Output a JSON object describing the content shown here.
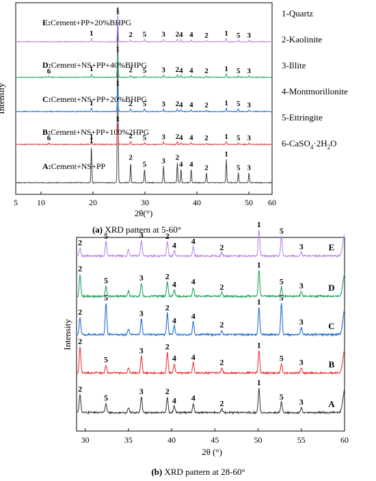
{
  "colors": {
    "A": "#3f3f3f",
    "B": "#e8383b",
    "C": "#1f6fd6",
    "D": "#1fa35c",
    "E": "#b985e6",
    "frame": "#000000"
  },
  "legend": [
    {
      "text": "1-Quartz"
    },
    {
      "text": "2-Kaolinite"
    },
    {
      "text": "3-Illite"
    },
    {
      "text": "4-Montmorillonite"
    },
    {
      "text": "5-Ettringite"
    },
    {
      "main": "6-CaSO",
      "sub1": "4",
      "mid": "·2H",
      "sub2": "2",
      "tail": "O"
    }
  ],
  "chart_data": [
    {
      "type": "line",
      "title": "",
      "caption": {
        "bold": "(a)",
        "rest": " XRD pattern at 5-60°"
      },
      "xlabel": "2θ(°)",
      "ylabel": "Intensity",
      "xlim": [
        5,
        60
      ],
      "xticks": [
        "5",
        "10",
        "20",
        "30",
        "40",
        "50",
        "60"
      ],
      "yticks": "none",
      "grid": false,
      "series": [
        {
          "key": "A",
          "bold": "A:",
          "name": "Cement+NS+PP",
          "color": "#3f3f3f",
          "peaks": [
            {
              "x": 20.9,
              "h": 0.22,
              "label": "1"
            },
            {
              "x": 26.6,
              "h": 1.0,
              "label": "1"
            },
            {
              "x": 29.4,
              "h": 0.12,
              "label": "2"
            },
            {
              "x": 32.4,
              "h": 0.08,
              "label": "5"
            },
            {
              "x": 36.5,
              "h": 0.1,
              "label": "3"
            },
            {
              "x": 39.5,
              "h": 0.12,
              "label": "2"
            },
            {
              "x": 40.3,
              "h": 0.08,
              "label": "4"
            },
            {
              "x": 42.5,
              "h": 0.08,
              "label": "4"
            },
            {
              "x": 45.8,
              "h": 0.06,
              "label": "2"
            },
            {
              "x": 50.1,
              "h": 0.14,
              "label": "1"
            },
            {
              "x": 52.7,
              "h": 0.06,
              "label": "5"
            },
            {
              "x": 55.0,
              "h": 0.06,
              "label": "3"
            }
          ]
        },
        {
          "key": "B",
          "bold": "B:",
          "name": "Cement+NS+PP+100%2HPG",
          "color": "#e8383b",
          "peaks": [
            {
              "x": 11.7,
              "h": 0.06,
              "label": "6"
            },
            {
              "x": 20.9,
              "h": 0.14,
              "label": "1"
            },
            {
              "x": 26.6,
              "h": 1.0,
              "label": "1"
            },
            {
              "x": 29.4,
              "h": 0.16,
              "label": "2"
            },
            {
              "x": 32.4,
              "h": 0.08,
              "label": "5"
            },
            {
              "x": 36.5,
              "h": 0.12,
              "label": "3"
            },
            {
              "x": 39.5,
              "h": 0.14,
              "label": "2"
            },
            {
              "x": 40.3,
              "h": 0.08,
              "label": "4"
            },
            {
              "x": 42.5,
              "h": 0.08,
              "label": "4"
            },
            {
              "x": 45.8,
              "h": 0.06,
              "label": "2"
            },
            {
              "x": 50.1,
              "h": 0.14,
              "label": "1"
            },
            {
              "x": 52.7,
              "h": 0.06,
              "label": "5"
            },
            {
              "x": 55.0,
              "h": 0.06,
              "label": "3"
            }
          ]
        },
        {
          "key": "C",
          "bold": "C:",
          "name": "Cement+NS+PP+20%BHPG",
          "color": "#1f6fd6",
          "peaks": [
            {
              "x": 20.9,
              "h": 0.14,
              "label": "1"
            },
            {
              "x": 26.6,
              "h": 1.0,
              "label": "1"
            },
            {
              "x": 29.4,
              "h": 0.12,
              "label": "2"
            },
            {
              "x": 32.4,
              "h": 0.12,
              "label": "5"
            },
            {
              "x": 36.5,
              "h": 0.1,
              "label": "3"
            },
            {
              "x": 39.5,
              "h": 0.12,
              "label": "2"
            },
            {
              "x": 40.3,
              "h": 0.08,
              "label": "4"
            },
            {
              "x": 42.5,
              "h": 0.08,
              "label": "4"
            },
            {
              "x": 45.8,
              "h": 0.06,
              "label": "2"
            },
            {
              "x": 50.1,
              "h": 0.14,
              "label": "1"
            },
            {
              "x": 52.7,
              "h": 0.12,
              "label": "5"
            },
            {
              "x": 55.0,
              "h": 0.06,
              "label": "3"
            }
          ]
        },
        {
          "key": "D",
          "bold": "D:",
          "name": "Cement+NS+PP+40%BHPG",
          "color": "#1fa35c",
          "peaks": [
            {
              "x": 11.7,
              "h": 0.05,
              "label": "6"
            },
            {
              "x": 20.9,
              "h": 0.14,
              "label": "1"
            },
            {
              "x": 26.6,
              "h": 1.0,
              "label": "1"
            },
            {
              "x": 29.4,
              "h": 0.1,
              "label": "2"
            },
            {
              "x": 32.4,
              "h": 0.08,
              "label": "5"
            },
            {
              "x": 36.5,
              "h": 0.1,
              "label": "3"
            },
            {
              "x": 39.5,
              "h": 0.12,
              "label": "2"
            },
            {
              "x": 40.3,
              "h": 0.08,
              "label": "4"
            },
            {
              "x": 42.5,
              "h": 0.08,
              "label": "4"
            },
            {
              "x": 45.8,
              "h": 0.06,
              "label": "2"
            },
            {
              "x": 50.1,
              "h": 0.14,
              "label": "1"
            },
            {
              "x": 52.7,
              "h": 0.06,
              "label": "5"
            },
            {
              "x": 55.0,
              "h": 0.06,
              "label": "3"
            }
          ]
        },
        {
          "key": "E",
          "bold": "E:",
          "name": "Cement+PP+20%BHPG",
          "color": "#b985e6",
          "peaks": [
            {
              "x": 20.9,
              "h": 0.14,
              "label": "1"
            },
            {
              "x": 26.6,
              "h": 1.0,
              "label": "1"
            },
            {
              "x": 29.4,
              "h": 0.08,
              "label": "2"
            },
            {
              "x": 32.4,
              "h": 0.1,
              "label": "5"
            },
            {
              "x": 36.5,
              "h": 0.1,
              "label": "3"
            },
            {
              "x": 39.5,
              "h": 0.1,
              "label": "2"
            },
            {
              "x": 40.3,
              "h": 0.08,
              "label": "4"
            },
            {
              "x": 42.5,
              "h": 0.08,
              "label": "4"
            },
            {
              "x": 45.8,
              "h": 0.06,
              "label": "2"
            },
            {
              "x": 50.1,
              "h": 0.14,
              "label": "1"
            },
            {
              "x": 52.7,
              "h": 0.06,
              "label": "5"
            },
            {
              "x": 55.0,
              "h": 0.06,
              "label": "3"
            }
          ]
        }
      ]
    },
    {
      "type": "line",
      "title": "",
      "caption": {
        "bold": "(b)",
        "rest": " XRD pattern at 28-60°"
      },
      "xlabel": "2θ (°)",
      "ylabel": "Intensity",
      "xlim": [
        29,
        60
      ],
      "xticks": [
        "30",
        "35",
        "40",
        "45",
        "50",
        "55",
        "60"
      ],
      "yticks": "none",
      "grid": false,
      "series": [
        {
          "key": "A",
          "name": "A",
          "color": "#3f3f3f",
          "peaks": [
            {
              "x": 29.4,
              "h": 0.7,
              "label": "2"
            },
            {
              "x": 32.4,
              "h": 0.35,
              "label": "5"
            },
            {
              "x": 35.0,
              "h": 0.2,
              "label": ""
            },
            {
              "x": 36.5,
              "h": 0.6,
              "label": "3"
            },
            {
              "x": 39.5,
              "h": 0.6,
              "label": "2"
            },
            {
              "x": 40.3,
              "h": 0.25,
              "label": "4"
            },
            {
              "x": 42.5,
              "h": 0.35,
              "label": "4"
            },
            {
              "x": 45.8,
              "h": 0.15,
              "label": "2"
            },
            {
              "x": 50.1,
              "h": 0.95,
              "label": "1"
            },
            {
              "x": 52.7,
              "h": 0.4,
              "label": "5"
            },
            {
              "x": 55.0,
              "h": 0.2,
              "label": "3"
            },
            {
              "x": 60.0,
              "h": 0.85,
              "label": ""
            }
          ]
        },
        {
          "key": "B",
          "name": "B",
          "color": "#e8383b",
          "peaks": [
            {
              "x": 29.4,
              "h": 1.0,
              "label": "2"
            },
            {
              "x": 32.4,
              "h": 0.3,
              "label": "5"
            },
            {
              "x": 35.0,
              "h": 0.2,
              "label": ""
            },
            {
              "x": 36.5,
              "h": 0.65,
              "label": "3"
            },
            {
              "x": 39.5,
              "h": 0.8,
              "label": "2"
            },
            {
              "x": 40.3,
              "h": 0.35,
              "label": "4"
            },
            {
              "x": 42.5,
              "h": 0.4,
              "label": "4"
            },
            {
              "x": 45.8,
              "h": 0.2,
              "label": "2"
            },
            {
              "x": 50.1,
              "h": 0.85,
              "label": "1"
            },
            {
              "x": 52.7,
              "h": 0.35,
              "label": "5"
            },
            {
              "x": 55.0,
              "h": 0.2,
              "label": "3"
            },
            {
              "x": 60.0,
              "h": 0.85,
              "label": ""
            }
          ]
        },
        {
          "key": "C",
          "name": "C",
          "color": "#1f6fd6",
          "peaks": [
            {
              "x": 29.4,
              "h": 0.6,
              "label": "2"
            },
            {
              "x": 32.4,
              "h": 1.1,
              "label": "5"
            },
            {
              "x": 35.0,
              "h": 0.2,
              "label": ""
            },
            {
              "x": 36.5,
              "h": 0.55,
              "label": "3"
            },
            {
              "x": 39.5,
              "h": 0.75,
              "label": "2"
            },
            {
              "x": 40.3,
              "h": 0.3,
              "label": "4"
            },
            {
              "x": 42.5,
              "h": 0.45,
              "label": "4"
            },
            {
              "x": 45.8,
              "h": 0.15,
              "label": "2"
            },
            {
              "x": 50.1,
              "h": 0.95,
              "label": "1"
            },
            {
              "x": 52.7,
              "h": 1.1,
              "label": "5"
            },
            {
              "x": 55.0,
              "h": 0.25,
              "label": "3"
            },
            {
              "x": 60.0,
              "h": 0.85,
              "label": ""
            }
          ]
        },
        {
          "key": "D",
          "name": "D",
          "color": "#1fa35c",
          "peaks": [
            {
              "x": 29.4,
              "h": 0.85,
              "label": "2"
            },
            {
              "x": 32.4,
              "h": 0.4,
              "label": "5"
            },
            {
              "x": 35.0,
              "h": 0.2,
              "label": ""
            },
            {
              "x": 36.5,
              "h": 0.5,
              "label": "3"
            },
            {
              "x": 39.5,
              "h": 0.55,
              "label": "2"
            },
            {
              "x": 40.3,
              "h": 0.25,
              "label": "4"
            },
            {
              "x": 42.5,
              "h": 0.35,
              "label": "4"
            },
            {
              "x": 45.8,
              "h": 0.15,
              "label": "2"
            },
            {
              "x": 50.1,
              "h": 1.0,
              "label": "1"
            },
            {
              "x": 52.7,
              "h": 0.35,
              "label": "5"
            },
            {
              "x": 55.0,
              "h": 0.2,
              "label": "3"
            },
            {
              "x": 60.0,
              "h": 0.85,
              "label": ""
            }
          ]
        },
        {
          "key": "E",
          "name": "E",
          "color": "#b985e6",
          "peaks": [
            {
              "x": 29.4,
              "h": 0.3,
              "label": "2"
            },
            {
              "x": 32.4,
              "h": 0.55,
              "label": "5"
            },
            {
              "x": 35.0,
              "h": 0.25,
              "label": ""
            },
            {
              "x": 36.5,
              "h": 0.6,
              "label": "3"
            },
            {
              "x": 39.5,
              "h": 0.55,
              "label": "2"
            },
            {
              "x": 40.3,
              "h": 0.2,
              "label": "4"
            },
            {
              "x": 42.5,
              "h": 0.35,
              "label": "4"
            },
            {
              "x": 45.8,
              "h": 0.12,
              "label": "2"
            },
            {
              "x": 50.1,
              "h": 1.0,
              "label": "1"
            },
            {
              "x": 52.7,
              "h": 0.75,
              "label": "5"
            },
            {
              "x": 55.0,
              "h": 0.15,
              "label": "3"
            },
            {
              "x": 60.0,
              "h": 0.8,
              "label": ""
            }
          ]
        }
      ]
    }
  ]
}
